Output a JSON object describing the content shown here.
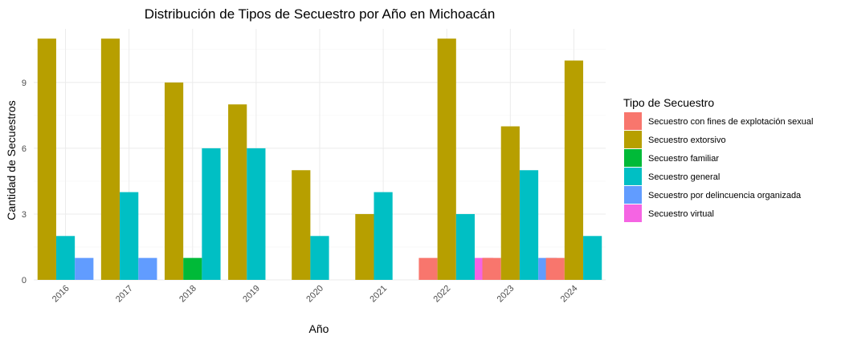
{
  "chart_data": {
    "type": "bar",
    "title": "Distribución de Tipos de Secuestro por Año en Michoacán",
    "xlabel": "Año",
    "ylabel": "Cantidad de Secuestros",
    "categories": [
      "2016",
      "2017",
      "2018",
      "2019",
      "2020",
      "2021",
      "2022",
      "2023",
      "2024"
    ],
    "y_ticks": [
      0,
      3,
      6,
      9
    ],
    "ylim": [
      0,
      11.5
    ],
    "grid": true,
    "legend": {
      "title": "Tipo de Secuestro",
      "position": "right"
    },
    "series": [
      {
        "name": "Secuestro con fines de explotación sexual",
        "color": "#F8766D",
        "values": [
          null,
          null,
          null,
          null,
          null,
          null,
          1,
          1,
          1
        ]
      },
      {
        "name": "Secuestro extorsivo",
        "color": "#B79F00",
        "values": [
          11,
          11,
          9,
          8,
          5,
          3,
          11,
          7,
          10
        ]
      },
      {
        "name": "Secuestro familiar",
        "color": "#00BA38",
        "values": [
          null,
          null,
          1,
          null,
          null,
          null,
          null,
          null,
          null
        ]
      },
      {
        "name": "Secuestro general",
        "color": "#00BFC4",
        "values": [
          2,
          4,
          6,
          6,
          2,
          4,
          3,
          5,
          2
        ]
      },
      {
        "name": "Secuestro por delincuencia organizada",
        "color": "#619CFF",
        "values": [
          1,
          1,
          null,
          null,
          null,
          null,
          null,
          1,
          null
        ]
      },
      {
        "name": "Secuestro virtual",
        "color": "#F564E3",
        "values": [
          null,
          null,
          null,
          null,
          null,
          null,
          1,
          null,
          null
        ]
      }
    ]
  }
}
